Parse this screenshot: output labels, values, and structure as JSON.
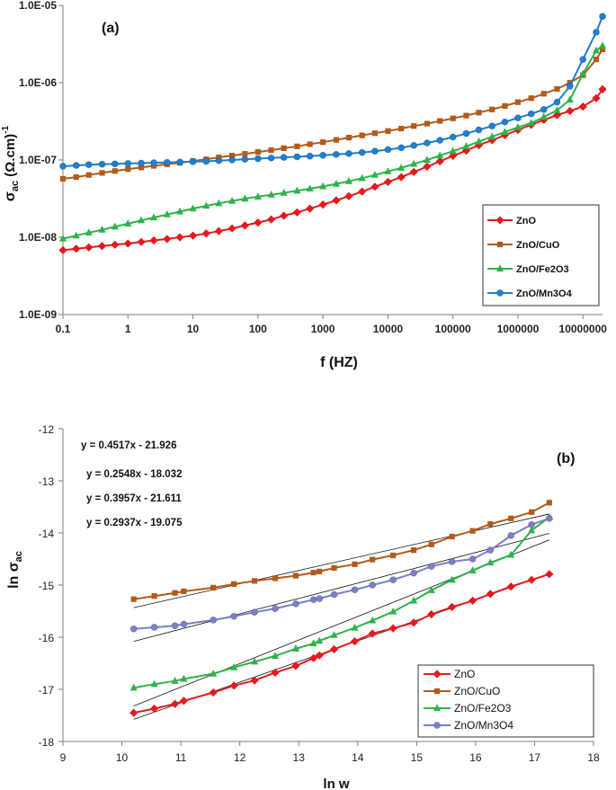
{
  "chart_data": [
    {
      "type": "line",
      "panel_label": "(a)",
      "xscale": "log",
      "yscale": "log",
      "xlabel": "f (HZ)",
      "ylabel": "σ",
      "ylabel_sub": "ac",
      "ylabel_unit": " (Ω.cm)",
      "ylabel_sup": "-1",
      "xlim": [
        0.1,
        20000000
      ],
      "ylim": [
        1e-09,
        1e-05
      ],
      "x_ticks": [
        0.1,
        1,
        10,
        100,
        1000,
        10000,
        100000,
        1000000,
        10000000
      ],
      "x_tick_labels": [
        "0.1",
        "1",
        "10",
        "100",
        "1000",
        "10000",
        "100000",
        "1000000",
        "10000000"
      ],
      "y_ticks": [
        1e-09,
        1e-08,
        1e-07,
        1e-06,
        1e-05
      ],
      "y_tick_labels": [
        "1.0E-09",
        "1.0E-08",
        "1.0E-07",
        "1.0E-06",
        "1.0E-05"
      ],
      "legend_position": "bottom-right",
      "x": [
        0.1,
        0.16,
        0.25,
        0.4,
        0.63,
        1,
        1.6,
        2.5,
        4,
        6.3,
        10,
        16,
        25,
        40,
        63,
        100,
        160,
        250,
        400,
        630,
        1000,
        1600,
        2500,
        4000,
        6300,
        10000,
        16000,
        25000,
        40000,
        63000,
        100000,
        160000,
        250000,
        400000,
        630000,
        1000000,
        1600000,
        2500000,
        4000000,
        6300000,
        10000000,
        16000000,
        20000000
      ],
      "series": [
        {
          "name": "ZnO",
          "color": "#e41a1c",
          "marker": "diamond",
          "values": [
            6.8e-09,
            7.1e-09,
            7.4e-09,
            7.7e-09,
            8e-09,
            8.3e-09,
            8.7e-09,
            9.1e-09,
            9.5e-09,
            1e-08,
            1.05e-08,
            1.12e-08,
            1.2e-08,
            1.3e-08,
            1.42e-08,
            1.55e-08,
            1.7e-08,
            1.9e-08,
            2.1e-08,
            2.35e-08,
            2.65e-08,
            3e-08,
            3.4e-08,
            3.9e-08,
            4.5e-08,
            5.2e-08,
            6e-08,
            7e-08,
            8.2e-08,
            9.6e-08,
            1.13e-07,
            1.32e-07,
            1.55e-07,
            1.8e-07,
            2.1e-07,
            2.45e-07,
            2.85e-07,
            3.3e-07,
            3.8e-07,
            4.3e-07,
            4.9e-07,
            6.3e-07,
            8.2e-07
          ]
        },
        {
          "name": "ZnO/CuO",
          "color": "#b35a1a",
          "marker": "square",
          "values": [
            5.7e-08,
            6e-08,
            6.4e-08,
            6.8e-08,
            7.2e-08,
            7.6e-08,
            8e-08,
            8.4e-08,
            8.8e-08,
            9.2e-08,
            9.7e-08,
            1.02e-07,
            1.08e-07,
            1.14e-07,
            1.2e-07,
            1.27e-07,
            1.34e-07,
            1.42e-07,
            1.5e-07,
            1.6e-07,
            1.7e-07,
            1.82e-07,
            1.95e-07,
            2.08e-07,
            2.22e-07,
            2.37e-07,
            2.55e-07,
            2.75e-07,
            2.95e-07,
            3.2e-07,
            3.45e-07,
            3.75e-07,
            4.1e-07,
            4.5e-07,
            5e-07,
            5.6e-07,
            6.3e-07,
            7.2e-07,
            8.3e-07,
            1e-06,
            1.25e-06,
            2e-06,
            2.7e-06
          ]
        },
        {
          "name": "ZnO/Fe2O3",
          "color": "#2db34a",
          "marker": "triangle",
          "values": [
            9.6e-09,
            1.05e-08,
            1.15e-08,
            1.25e-08,
            1.37e-08,
            1.5e-08,
            1.65e-08,
            1.8e-08,
            1.97e-08,
            2.15e-08,
            2.35e-08,
            2.55e-08,
            2.75e-08,
            2.95e-08,
            3.15e-08,
            3.35e-08,
            3.55e-08,
            3.75e-08,
            4e-08,
            4.25e-08,
            4.55e-08,
            4.9e-08,
            5.3e-08,
            5.8e-08,
            6.4e-08,
            7.1e-08,
            7.9e-08,
            8.9e-08,
            1e-07,
            1.14e-07,
            1.3e-07,
            1.5e-07,
            1.73e-07,
            2e-07,
            2.3e-07,
            2.65e-07,
            3e-07,
            3.6e-07,
            4.4e-07,
            6e-07,
            1.3e-06,
            2.6e-06,
            3e-06
          ]
        },
        {
          "name": "ZnO/Mn3O4",
          "color": "#1f7fd0",
          "marker": "circle",
          "values": [
            8.3e-08,
            8.5e-08,
            8.7e-08,
            8.8e-08,
            8.9e-08,
            9e-08,
            9.1e-08,
            9.2e-08,
            9.3e-08,
            9.4e-08,
            9.5e-08,
            9.6e-08,
            9.8e-08,
            1e-07,
            1.02e-07,
            1.04e-07,
            1.06e-07,
            1.08e-07,
            1.1e-07,
            1.12e-07,
            1.15e-07,
            1.18e-07,
            1.21e-07,
            1.25e-07,
            1.3e-07,
            1.36e-07,
            1.44e-07,
            1.54e-07,
            1.66e-07,
            1.8e-07,
            1.98e-07,
            2.2e-07,
            2.45e-07,
            2.75e-07,
            3.1e-07,
            3.5e-07,
            3.95e-07,
            4.5e-07,
            5.6e-07,
            9e-07,
            2e-06,
            4.5e-06,
            7.2e-06
          ]
        }
      ]
    },
    {
      "type": "scatter",
      "panel_label": "(b)",
      "xlabel": "ln w",
      "ylabel": "ln σ",
      "ylabel_sub": "ac",
      "xlim": [
        9,
        18
      ],
      "ylim": [
        -18,
        -12
      ],
      "x_ticks": [
        9,
        10,
        11,
        12,
        13,
        14,
        15,
        16,
        17,
        18
      ],
      "y_ticks": [
        -18,
        -17,
        -16,
        -15,
        -14,
        -13,
        -12
      ],
      "legend_position": "bottom-right",
      "fit_lines": [
        {
          "series": "ZnO",
          "slope": 0.4517,
          "intercept": -21.926,
          "label": "y = 0.4517x - 21.926"
        },
        {
          "series": "ZnO/CuO",
          "slope": 0.2548,
          "intercept": -18.032,
          "label": "y = 0.2548x - 18.032"
        },
        {
          "series": "ZnO/Fe2O3",
          "slope": 0.3957,
          "intercept": -21.611,
          "label": "y = 0.3957x - 21.611"
        },
        {
          "series": "ZnO/Mn3O4",
          "slope": 0.2937,
          "intercept": -19.075,
          "label": "y = 0.2937x - 19.075"
        }
      ],
      "x": [
        10.2,
        10.55,
        10.9,
        11.05,
        11.55,
        11.9,
        12.25,
        12.6,
        12.95,
        13.25,
        13.35,
        13.6,
        13.95,
        14.25,
        14.6,
        14.95,
        15.25,
        15.6,
        15.95,
        16.25,
        16.6,
        16.95,
        17.25
      ],
      "series": [
        {
          "name": "ZnO",
          "color": "#e41a1c",
          "marker": "diamond",
          "values": [
            -17.45,
            -17.37,
            -17.28,
            -17.22,
            -17.06,
            -16.93,
            -16.83,
            -16.68,
            -16.55,
            -16.4,
            -16.35,
            -16.23,
            -16.08,
            -15.93,
            -15.83,
            -15.72,
            -15.56,
            -15.42,
            -15.3,
            -15.17,
            -15.03,
            -14.9,
            -14.79
          ]
        },
        {
          "name": "ZnO/CuO",
          "color": "#b35a1a",
          "marker": "square",
          "values": [
            -15.27,
            -15.21,
            -15.15,
            -15.12,
            -15.05,
            -14.98,
            -14.92,
            -14.87,
            -14.82,
            -14.76,
            -14.74,
            -14.67,
            -14.6,
            -14.51,
            -14.43,
            -14.33,
            -14.22,
            -14.07,
            -13.96,
            -13.83,
            -13.72,
            -13.6,
            -13.42
          ]
        },
        {
          "name": "ZnO/Fe2O3",
          "color": "#2db34a",
          "marker": "triangle",
          "values": [
            -16.97,
            -16.9,
            -16.84,
            -16.8,
            -16.7,
            -16.58,
            -16.47,
            -16.36,
            -16.22,
            -16.12,
            -16.07,
            -15.96,
            -15.82,
            -15.68,
            -15.51,
            -15.3,
            -15.1,
            -14.9,
            -14.72,
            -14.57,
            -14.42,
            -13.95,
            -13.7
          ]
        },
        {
          "name": "ZnO/Mn3O4",
          "color": "#7a7fc8",
          "marker": "circle",
          "values": [
            -15.84,
            -15.81,
            -15.78,
            -15.75,
            -15.67,
            -15.6,
            -15.52,
            -15.45,
            -15.36,
            -15.28,
            -15.26,
            -15.18,
            -15.09,
            -15.0,
            -14.9,
            -14.77,
            -14.64,
            -14.55,
            -14.5,
            -14.33,
            -14.05,
            -13.84,
            -13.72
          ]
        }
      ]
    }
  ]
}
